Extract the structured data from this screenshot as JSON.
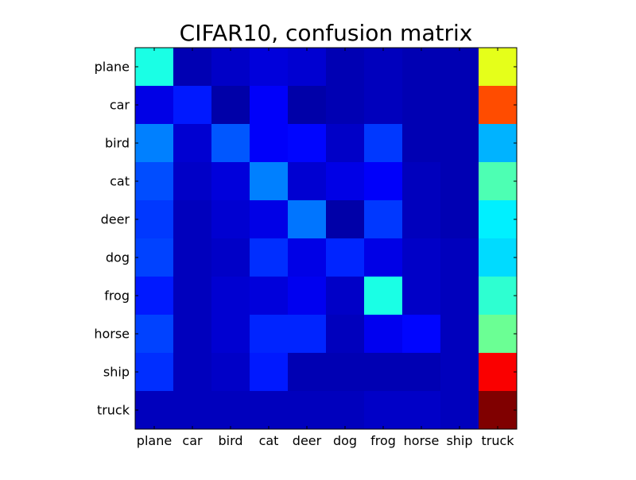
{
  "chart_data": {
    "type": "heatmap",
    "title": "CIFAR10, confusion matrix",
    "xlabel": "",
    "ylabel": "",
    "row_labels": [
      "plane",
      "car",
      "bird",
      "cat",
      "deer",
      "dog",
      "frog",
      "horse",
      "ship",
      "truck"
    ],
    "col_labels": [
      "plane",
      "car",
      "bird",
      "cat",
      "deer",
      "dog",
      "frog",
      "horse",
      "ship",
      "truck"
    ],
    "colormap": "jet",
    "value_range": [
      0,
      1
    ],
    "colorbar": false,
    "grid": false,
    "values": [
      [
        0.4,
        0.05,
        0.07,
        0.09,
        0.08,
        0.05,
        0.06,
        0.05,
        0.05,
        0.6
      ],
      [
        0.1,
        0.15,
        0.04,
        0.12,
        0.04,
        0.05,
        0.06,
        0.05,
        0.05,
        0.8
      ],
      [
        0.25,
        0.08,
        0.21,
        0.12,
        0.13,
        0.07,
        0.18,
        0.05,
        0.05,
        0.3
      ],
      [
        0.2,
        0.07,
        0.09,
        0.25,
        0.08,
        0.1,
        0.12,
        0.06,
        0.05,
        0.45
      ],
      [
        0.18,
        0.06,
        0.08,
        0.1,
        0.24,
        0.04,
        0.18,
        0.06,
        0.05,
        0.36
      ],
      [
        0.19,
        0.06,
        0.07,
        0.17,
        0.1,
        0.16,
        0.1,
        0.07,
        0.06,
        0.34
      ],
      [
        0.15,
        0.06,
        0.08,
        0.09,
        0.11,
        0.07,
        0.4,
        0.07,
        0.06,
        0.42
      ],
      [
        0.19,
        0.06,
        0.08,
        0.16,
        0.16,
        0.06,
        0.11,
        0.13,
        0.06,
        0.48
      ],
      [
        0.17,
        0.06,
        0.07,
        0.15,
        0.05,
        0.05,
        0.05,
        0.05,
        0.06,
        0.88
      ],
      [
        0.06,
        0.06,
        0.06,
        0.06,
        0.06,
        0.06,
        0.07,
        0.07,
        0.06,
        1.0
      ]
    ]
  }
}
